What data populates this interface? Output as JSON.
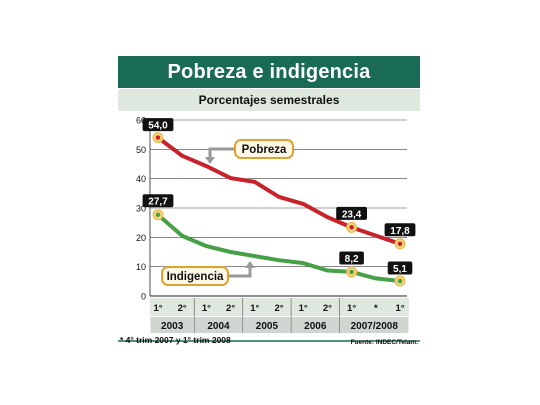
{
  "header": {
    "title": "Pobreza e indigencia",
    "subtitle": "Porcentajes semestrales"
  },
  "footer": {
    "note": "* 4° trim 2007 y 1° trim 2008",
    "source": "Fuente: INDEC/Telam."
  },
  "colors": {
    "header_green": "#1a6b55",
    "subtitle_bg": "#dfe8df",
    "pobreza_line": "#c8222a",
    "indigencia_line": "#46a045",
    "marker_fill": "#f3d27a",
    "label_box": "#111111",
    "callout_border": "#e0a030",
    "arrow_gray": "#9a9a9a"
  },
  "chart_data": {
    "type": "line",
    "categories": [
      "1°",
      "2°",
      "1°",
      "2°",
      "1°",
      "2°",
      "1°",
      "2°",
      "1°",
      "*",
      "1°"
    ],
    "groups": [
      {
        "label": "2003",
        "span": 2
      },
      {
        "label": "2004",
        "span": 2
      },
      {
        "label": "2005",
        "span": 2
      },
      {
        "label": "2006",
        "span": 2
      },
      {
        "label": "2007/2008",
        "span": 3
      }
    ],
    "yticks": [
      0,
      10,
      20,
      30,
      40,
      50,
      60
    ],
    "ylim": [
      0,
      60
    ],
    "grid": true,
    "series": [
      {
        "name": "Pobreza",
        "color": "#c8222a",
        "values": [
          54.0,
          47.8,
          44.3,
          40.2,
          38.9,
          33.8,
          31.4,
          26.9,
          23.4,
          20.6,
          17.8
        ],
        "data_labels": [
          {
            "index": 0,
            "text": "54,0"
          },
          {
            "index": 8,
            "text": "23,4"
          },
          {
            "index": 10,
            "text": "17,8"
          }
        ]
      },
      {
        "name": "Indigencia",
        "color": "#46a045",
        "values": [
          27.7,
          20.5,
          17.0,
          15.0,
          13.6,
          12.2,
          11.2,
          8.7,
          8.2,
          6.0,
          5.1
        ],
        "data_labels": [
          {
            "index": 0,
            "text": "27,7"
          },
          {
            "index": 8,
            "text": "8,2"
          },
          {
            "index": 10,
            "text": "5,1"
          }
        ]
      }
    ]
  }
}
